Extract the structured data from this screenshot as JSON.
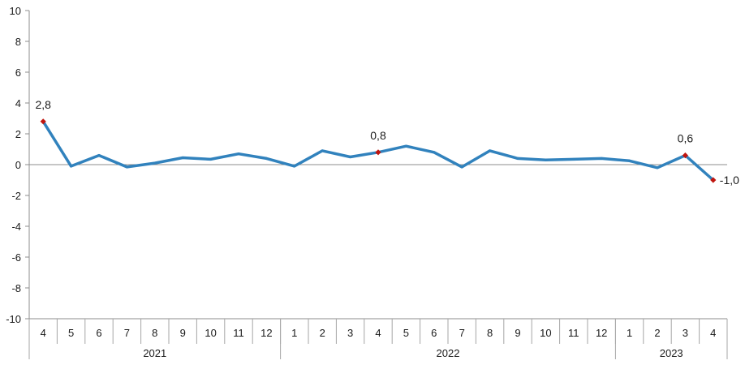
{
  "chart_data": {
    "type": "line",
    "ylim": [
      -10,
      10
    ],
    "y_ticks": [
      "10",
      "8",
      "6",
      "4",
      "2",
      "0",
      "-2",
      "-4",
      "-6",
      "-8",
      "-10"
    ],
    "y_tick_values": [
      10,
      8,
      6,
      4,
      2,
      0,
      -2,
      -4,
      -6,
      -8,
      -10
    ],
    "categories": [
      "4",
      "5",
      "6",
      "7",
      "8",
      "9",
      "10",
      "11",
      "12",
      "1",
      "2",
      "3",
      "4",
      "5",
      "6",
      "7",
      "8",
      "9",
      "10",
      "11",
      "12",
      "1",
      "2",
      "3",
      "4"
    ],
    "years": [
      {
        "label": "2021",
        "count": 9
      },
      {
        "label": "2022",
        "count": 12
      },
      {
        "label": "2023",
        "count": 4
      }
    ],
    "series": [
      {
        "values": [
          2.8,
          -0.1,
          0.6,
          -0.15,
          0.1,
          0.45,
          0.35,
          0.7,
          0.4,
          -0.1,
          0.9,
          0.5,
          0.8,
          1.2,
          0.8,
          -0.15,
          0.9,
          0.4,
          0.3,
          0.35,
          0.4,
          0.25,
          -0.2,
          0.6,
          -1.0
        ],
        "color": "#3182bd"
      }
    ],
    "data_labels": [
      {
        "index": 0,
        "text": "2,8"
      },
      {
        "index": 12,
        "text": "0,8"
      },
      {
        "index": 23,
        "text": "0,6"
      },
      {
        "index": 24,
        "text": "-1,0"
      }
    ],
    "marker_color": "#c0150f",
    "grid": false,
    "legend": "none"
  }
}
